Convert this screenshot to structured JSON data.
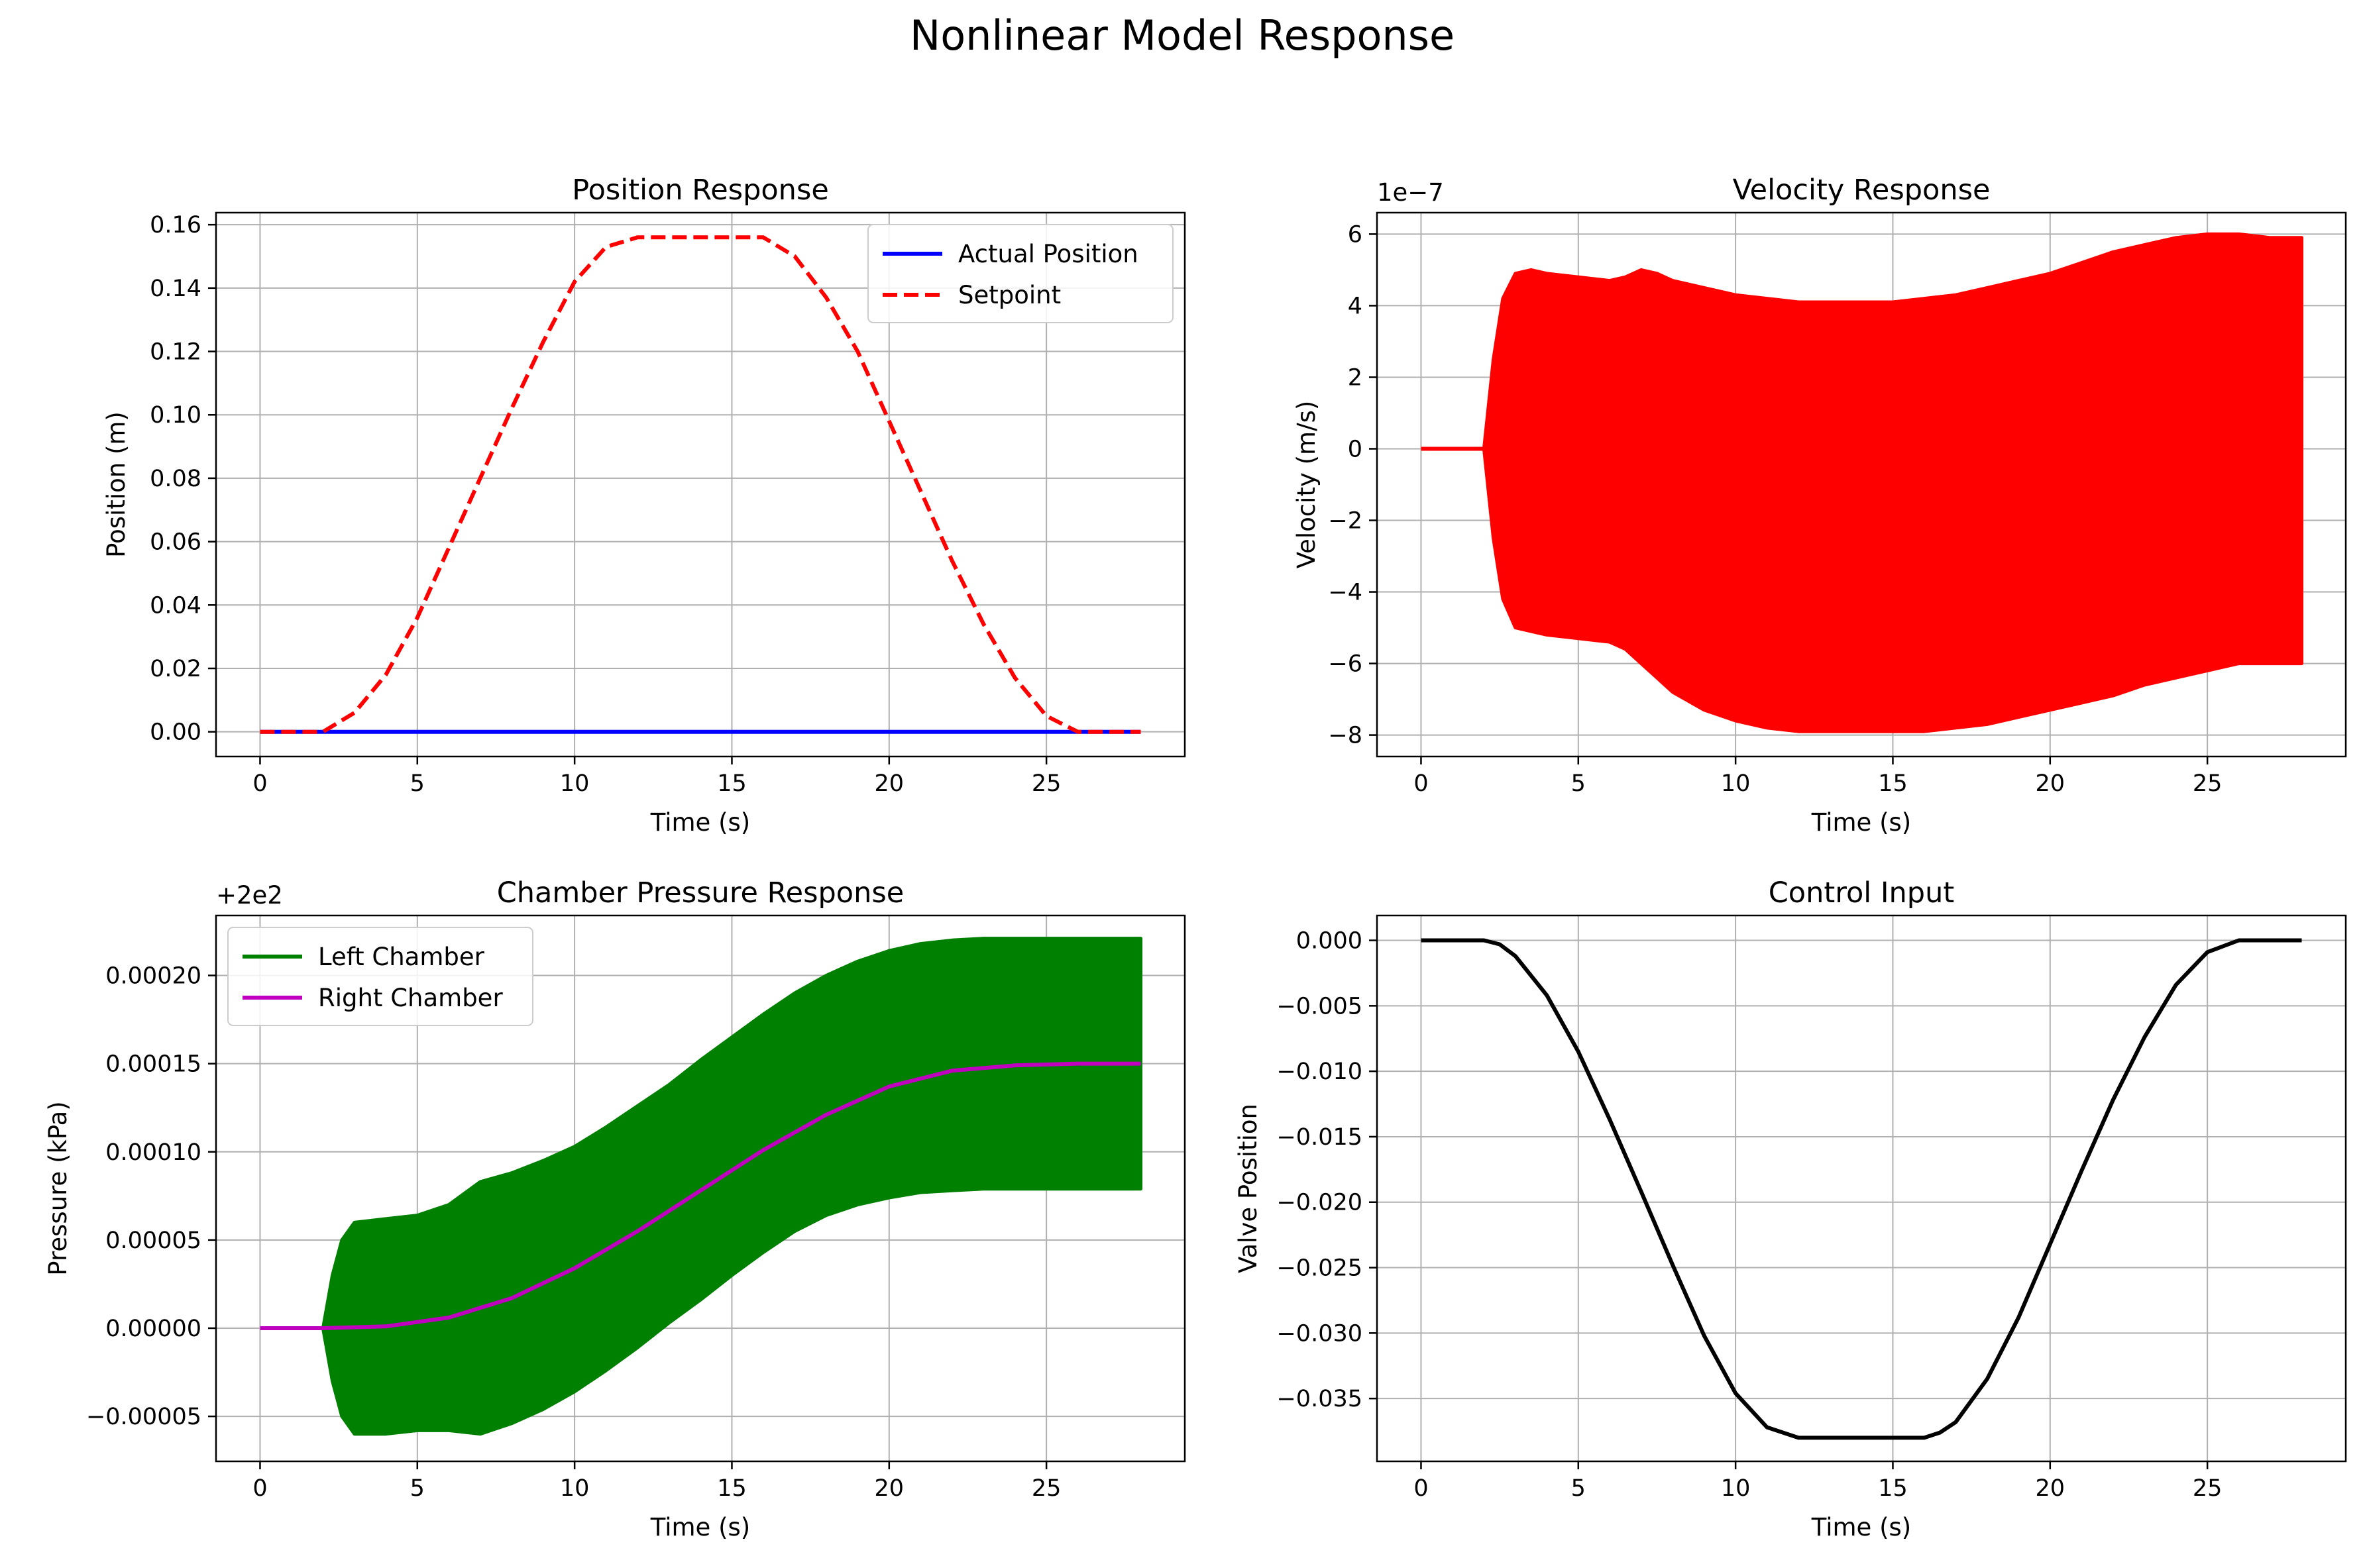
{
  "figure": {
    "suptitle": "Nonlinear Model Response"
  },
  "chart_data": [
    {
      "type": "line",
      "title": "Position Response",
      "xlabel": "Time (s)",
      "ylabel": "Position (m)",
      "xlim": [
        -1.4,
        29.4
      ],
      "ylim": [
        -0.0078,
        0.1638
      ],
      "xticks": [
        0,
        5,
        10,
        15,
        20,
        25
      ],
      "xtick_labels": [
        "0",
        "5",
        "10",
        "15",
        "20",
        "25"
      ],
      "yticks": [
        0.0,
        0.02,
        0.04,
        0.06,
        0.08,
        0.1,
        0.12,
        0.14,
        0.16
      ],
      "ytick_labels": [
        "0.00",
        "0.02",
        "0.04",
        "0.06",
        "0.08",
        "0.10",
        "0.12",
        "0.14",
        "0.16"
      ],
      "grid": true,
      "legend": "top-right",
      "series": [
        {
          "name": "Actual Position",
          "color": "#0000ff",
          "style": "solid",
          "x": [
            0,
            28
          ],
          "y": [
            0,
            0
          ]
        },
        {
          "name": "Setpoint",
          "color": "#ff0000",
          "style": "dashed",
          "x": [
            0,
            1,
            2,
            3,
            4,
            5,
            6,
            7,
            8,
            9,
            10,
            11,
            12,
            13,
            14,
            15,
            16,
            17,
            18,
            19,
            20,
            21,
            22,
            23,
            24,
            25,
            26,
            27,
            28
          ],
          "y": [
            0,
            0,
            0,
            0.006,
            0.018,
            0.036,
            0.058,
            0.08,
            0.102,
            0.123,
            0.142,
            0.153,
            0.156,
            0.156,
            0.156,
            0.156,
            0.156,
            0.15,
            0.137,
            0.12,
            0.098,
            0.076,
            0.054,
            0.034,
            0.017,
            0.005,
            0,
            0,
            0
          ]
        }
      ]
    },
    {
      "type": "area",
      "title": "Velocity Response",
      "xlabel": "Time (s)",
      "ylabel": "Velocity (m/s)",
      "offset_label": "1e−7",
      "xlim": [
        -1.4,
        29.4
      ],
      "ylim": [
        -8.6,
        6.6
      ],
      "xticks": [
        0,
        5,
        10,
        15,
        20,
        25
      ],
      "xtick_labels": [
        "0",
        "5",
        "10",
        "15",
        "20",
        "25"
      ],
      "yticks": [
        -8,
        -6,
        -4,
        -2,
        0,
        2,
        4,
        6
      ],
      "ytick_labels": [
        "−8",
        "−6",
        "−4",
        "−2",
        "0",
        "2",
        "4",
        "6"
      ],
      "grid": true,
      "series": [
        {
          "name": "",
          "color": "#ff0000",
          "kind": "line",
          "x": [
            0,
            2
          ],
          "y": [
            0,
            0
          ]
        },
        {
          "name": "",
          "color": "#ff0000",
          "kind": "envelope",
          "x": [
            2,
            2.3,
            2.6,
            3,
            3.5,
            4,
            5,
            6,
            6.5,
            7,
            7.5,
            8,
            9,
            10,
            11,
            12,
            13,
            14,
            15,
            16,
            17,
            18,
            19,
            20,
            21,
            22,
            23,
            24,
            25,
            26,
            27,
            28
          ],
          "upper": [
            0,
            2.5,
            4.2,
            4.9,
            5.0,
            4.9,
            4.8,
            4.7,
            4.8,
            5.0,
            4.9,
            4.7,
            4.5,
            4.3,
            4.2,
            4.1,
            4.1,
            4.1,
            4.1,
            4.2,
            4.3,
            4.5,
            4.7,
            4.9,
            5.2,
            5.5,
            5.7,
            5.9,
            6.0,
            6.0,
            5.9,
            5.9
          ],
          "lower": [
            0,
            -2.5,
            -4.2,
            -5.0,
            -5.1,
            -5.2,
            -5.3,
            -5.4,
            -5.6,
            -6.0,
            -6.4,
            -6.8,
            -7.3,
            -7.6,
            -7.8,
            -7.9,
            -7.9,
            -7.9,
            -7.9,
            -7.9,
            -7.8,
            -7.7,
            -7.5,
            -7.3,
            -7.1,
            -6.9,
            -6.6,
            -6.4,
            -6.2,
            -6.0,
            -6.0,
            -6.0
          ]
        }
      ]
    },
    {
      "type": "area",
      "title": "Chamber Pressure Response",
      "xlabel": "Time (s)",
      "ylabel": "Pressure (kPa)",
      "offset_label": "+2e2",
      "xlim": [
        -1.4,
        29.4
      ],
      "ylim": [
        -7.55e-05,
        0.000234
      ],
      "xticks": [
        0,
        5,
        10,
        15,
        20,
        25
      ],
      "xtick_labels": [
        "0",
        "5",
        "10",
        "15",
        "20",
        "25"
      ],
      "yticks": [
        -5e-05,
        0,
        5e-05,
        0.0001,
        0.00015,
        0.0002
      ],
      "ytick_labels": [
        "−0.00005",
        "0.00000",
        "0.00005",
        "0.00010",
        "0.00015",
        "0.00020"
      ],
      "grid": true,
      "legend": "top-left",
      "series": [
        {
          "name": "Left Chamber",
          "color": "#008000",
          "kind": "envelope",
          "x": [
            2,
            2.3,
            2.6,
            3,
            4,
            5,
            6,
            7,
            8,
            9,
            10,
            11,
            12,
            13,
            14,
            15,
            16,
            17,
            18,
            19,
            20,
            21,
            22,
            23,
            24,
            25,
            26,
            27,
            28
          ],
          "upper": [
            0,
            3e-05,
            5e-05,
            6e-05,
            6.2e-05,
            6.4e-05,
            7e-05,
            8.3e-05,
            8.8e-05,
            9.5e-05,
            0.000103,
            0.000114,
            0.000126,
            0.000138,
            0.000152,
            0.000165,
            0.000178,
            0.00019,
            0.0002,
            0.000208,
            0.000214,
            0.000218,
            0.00022,
            0.000221,
            0.000221,
            0.000221,
            0.000221,
            0.000221,
            0.000221
          ],
          "lower": [
            0,
            -3e-05,
            -5e-05,
            -6e-05,
            -6e-05,
            -5.8e-05,
            -5.8e-05,
            -6e-05,
            -5.4e-05,
            -4.6e-05,
            -3.6e-05,
            -2.4e-05,
            -1.1e-05,
            3e-06,
            1.6e-05,
            3e-05,
            4.3e-05,
            5.5e-05,
            6.4e-05,
            7e-05,
            7.4e-05,
            7.7e-05,
            7.8e-05,
            7.9e-05,
            7.9e-05,
            7.9e-05,
            7.9e-05,
            7.9e-05,
            7.9e-05
          ]
        },
        {
          "name": "Right Chamber",
          "color": "#bf00bf",
          "kind": "line",
          "x": [
            0,
            2,
            4,
            6,
            8,
            10,
            12,
            14,
            16,
            18,
            20,
            22,
            24,
            26,
            28
          ],
          "y": [
            0,
            0,
            1e-06,
            6e-06,
            1.7e-05,
            3.4e-05,
            5.5e-05,
            7.8e-05,
            0.000101,
            0.000121,
            0.000137,
            0.000146,
            0.000149,
            0.00015,
            0.00015
          ]
        }
      ]
    },
    {
      "type": "line",
      "title": "Control Input",
      "xlabel": "Time (s)",
      "ylabel": "Valve Position",
      "xlim": [
        -1.4,
        29.4
      ],
      "ylim": [
        -0.0398,
        0.0019
      ],
      "xticks": [
        0,
        5,
        10,
        15,
        20,
        25
      ],
      "xtick_labels": [
        "0",
        "5",
        "10",
        "15",
        "20",
        "25"
      ],
      "yticks": [
        0,
        -0.005,
        -0.01,
        -0.015,
        -0.02,
        -0.025,
        -0.03,
        -0.035
      ],
      "ytick_labels": [
        "0.000",
        "−0.005",
        "−0.010",
        "−0.015",
        "−0.020",
        "−0.025",
        "−0.030",
        "−0.035"
      ],
      "grid": true,
      "series": [
        {
          "name": "",
          "color": "#000000",
          "style": "solid",
          "x": [
            0,
            1,
            2,
            2.5,
            3,
            4,
            5,
            6,
            7,
            8,
            9,
            10,
            11,
            12,
            13,
            14,
            15,
            16,
            16.5,
            17,
            18,
            19,
            20,
            21,
            22,
            23,
            24,
            25,
            26,
            27,
            28
          ],
          "y": [
            0,
            0,
            0,
            -0.0003,
            -0.0012,
            -0.0042,
            -0.0085,
            -0.0137,
            -0.0192,
            -0.0248,
            -0.0302,
            -0.0346,
            -0.0372,
            -0.038,
            -0.038,
            -0.038,
            -0.038,
            -0.038,
            -0.0376,
            -0.0368,
            -0.0335,
            -0.0288,
            -0.0232,
            -0.0176,
            -0.0122,
            -0.0074,
            -0.0034,
            -0.0009,
            0,
            0,
            0
          ]
        }
      ]
    }
  ]
}
